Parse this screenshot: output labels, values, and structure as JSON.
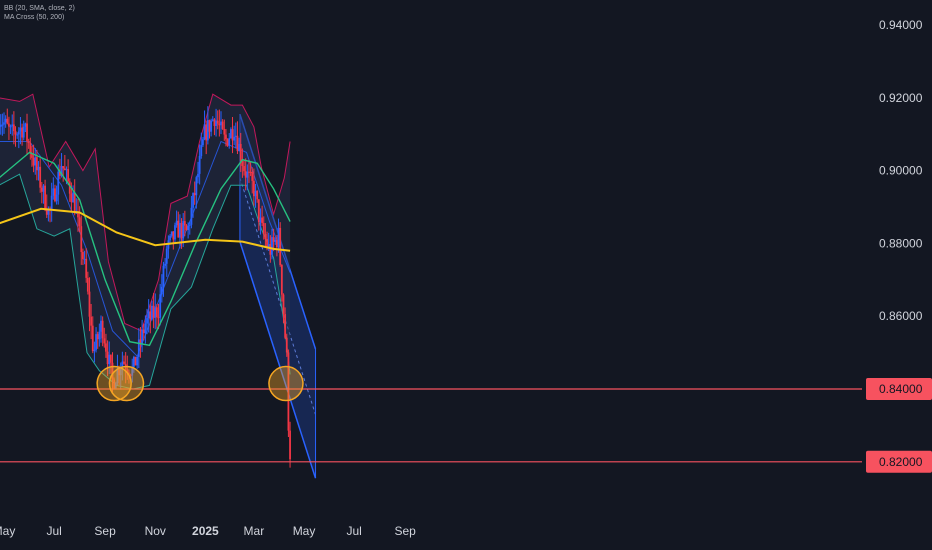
{
  "indicators": {
    "bb_label": "BB (20, SMA, close, 2)",
    "ma_label": "MA Cross (50, 200)"
  },
  "colors": {
    "background": "#131722",
    "candle_up": "#2962ff",
    "candle_down": "#f23645",
    "ma_200": "#f5c518",
    "ma_50": "#26c281",
    "bb_basis": "#2962ff",
    "bb_upper": "#c2185b",
    "bb_lower": "#26a69a",
    "level_line": "#f7525f",
    "channel": "#2962ff",
    "highlight_circle": "#f5a623"
  },
  "chart_data": {
    "type": "candlestick",
    "instrument_note": "",
    "x_axis_labels": [
      "May",
      "Jul",
      "Sep",
      "Nov",
      "2025",
      "Mar",
      "May",
      "Jul",
      "Sep"
    ],
    "y_axis_ticks": [
      "0.94000",
      "0.92000",
      "0.90000",
      "0.88000",
      "0.86000",
      "0.84000",
      "0.82000"
    ],
    "ylim": [
      0.8095,
      0.9525
    ],
    "horizontal_levels": [
      {
        "value": 0.84,
        "label": "0.84000"
      },
      {
        "value": 0.82,
        "label": "0.82000"
      }
    ],
    "price_path": [
      {
        "date": "2024-04-25",
        "price": 0.915
      },
      {
        "date": "2024-05-10",
        "price": 0.91
      },
      {
        "date": "2024-05-25",
        "price": 0.912
      },
      {
        "date": "2024-06-10",
        "price": 0.9
      },
      {
        "date": "2024-06-25",
        "price": 0.888
      },
      {
        "date": "2024-07-10",
        "price": 0.902
      },
      {
        "date": "2024-07-25",
        "price": 0.892
      },
      {
        "date": "2024-08-08",
        "price": 0.872
      },
      {
        "date": "2024-08-18",
        "price": 0.85
      },
      {
        "date": "2024-08-28",
        "price": 0.858
      },
      {
        "date": "2024-09-10",
        "price": 0.842
      },
      {
        "date": "2024-09-22",
        "price": 0.848
      },
      {
        "date": "2024-10-05",
        "price": 0.845
      },
      {
        "date": "2024-10-20",
        "price": 0.858
      },
      {
        "date": "2024-11-05",
        "price": 0.862
      },
      {
        "date": "2024-11-15",
        "price": 0.878
      },
      {
        "date": "2024-11-28",
        "price": 0.884
      },
      {
        "date": "2024-12-10",
        "price": 0.883
      },
      {
        "date": "2024-12-20",
        "price": 0.895
      },
      {
        "date": "2024-12-31",
        "price": 0.91
      },
      {
        "date": "2025-01-12",
        "price": 0.915
      },
      {
        "date": "2025-01-25",
        "price": 0.908
      },
      {
        "date": "2025-02-05",
        "price": 0.912
      },
      {
        "date": "2025-02-18",
        "price": 0.9
      },
      {
        "date": "2025-03-01",
        "price": 0.895
      },
      {
        "date": "2025-03-10",
        "price": 0.884
      },
      {
        "date": "2025-03-20",
        "price": 0.878
      },
      {
        "date": "2025-03-31",
        "price": 0.882
      },
      {
        "date": "2025-04-04",
        "price": 0.868
      },
      {
        "date": "2025-04-07",
        "price": 0.858
      },
      {
        "date": "2025-04-10",
        "price": 0.848
      },
      {
        "date": "2025-04-11",
        "price": 0.835
      },
      {
        "date": "2025-04-14",
        "price": 0.8225
      }
    ],
    "ma_200": [
      {
        "date": "2024-04-25",
        "price": 0.8855
      },
      {
        "date": "2024-06-15",
        "price": 0.8895
      },
      {
        "date": "2024-08-01",
        "price": 0.8885
      },
      {
        "date": "2024-09-15",
        "price": 0.883
      },
      {
        "date": "2024-11-01",
        "price": 0.8795
      },
      {
        "date": "2025-01-01",
        "price": 0.881
      },
      {
        "date": "2025-02-15",
        "price": 0.8805
      },
      {
        "date": "2025-03-25",
        "price": 0.8785
      },
      {
        "date": "2025-04-14",
        "price": 0.878
      }
    ],
    "ma_50": [
      {
        "date": "2024-04-25",
        "price": 0.898
      },
      {
        "date": "2024-06-01",
        "price": 0.905
      },
      {
        "date": "2024-07-01",
        "price": 0.902
      },
      {
        "date": "2024-08-01",
        "price": 0.892
      },
      {
        "date": "2024-09-01",
        "price": 0.87
      },
      {
        "date": "2024-10-01",
        "price": 0.853
      },
      {
        "date": "2024-10-25",
        "price": 0.852
      },
      {
        "date": "2024-11-20",
        "price": 0.864
      },
      {
        "date": "2024-12-20",
        "price": 0.88
      },
      {
        "date": "2025-01-20",
        "price": 0.895
      },
      {
        "date": "2025-02-15",
        "price": 0.903
      },
      {
        "date": "2025-03-05",
        "price": 0.902
      },
      {
        "date": "2025-03-25",
        "price": 0.895
      },
      {
        "date": "2025-04-14",
        "price": 0.886
      }
    ],
    "bb_upper": [
      {
        "date": "2024-04-25",
        "price": 0.92
      },
      {
        "date": "2024-05-20",
        "price": 0.919
      },
      {
        "date": "2024-06-05",
        "price": 0.921
      },
      {
        "date": "2024-06-25",
        "price": 0.901
      },
      {
        "date": "2024-07-15",
        "price": 0.908
      },
      {
        "date": "2024-08-05",
        "price": 0.9
      },
      {
        "date": "2024-08-20",
        "price": 0.906
      },
      {
        "date": "2024-09-05",
        "price": 0.875
      },
      {
        "date": "2024-09-25",
        "price": 0.858
      },
      {
        "date": "2024-10-15",
        "price": 0.856
      },
      {
        "date": "2024-11-05",
        "price": 0.87
      },
      {
        "date": "2024-11-20",
        "price": 0.891
      },
      {
        "date": "2024-12-10",
        "price": 0.893
      },
      {
        "date": "2024-12-25",
        "price": 0.908
      },
      {
        "date": "2025-01-10",
        "price": 0.921
      },
      {
        "date": "2025-02-01",
        "price": 0.918
      },
      {
        "date": "2025-02-15",
        "price": 0.918
      },
      {
        "date": "2025-03-01",
        "price": 0.912
      },
      {
        "date": "2025-03-10",
        "price": 0.901
      },
      {
        "date": "2025-03-25",
        "price": 0.888
      },
      {
        "date": "2025-04-07",
        "price": 0.898
      },
      {
        "date": "2025-04-14",
        "price": 0.908
      }
    ],
    "bb_lower": [
      {
        "date": "2024-04-25",
        "price": 0.896
      },
      {
        "date": "2024-05-20",
        "price": 0.899
      },
      {
        "date": "2024-06-10",
        "price": 0.884
      },
      {
        "date": "2024-07-01",
        "price": 0.882
      },
      {
        "date": "2024-07-20",
        "price": 0.884
      },
      {
        "date": "2024-08-10",
        "price": 0.85
      },
      {
        "date": "2024-08-25",
        "price": 0.845
      },
      {
        "date": "2024-09-15",
        "price": 0.841
      },
      {
        "date": "2024-10-05",
        "price": 0.84
      },
      {
        "date": "2024-10-25",
        "price": 0.841
      },
      {
        "date": "2024-11-20",
        "price": 0.862
      },
      {
        "date": "2024-12-15",
        "price": 0.868
      },
      {
        "date": "2025-01-10",
        "price": 0.884
      },
      {
        "date": "2025-02-01",
        "price": 0.896
      },
      {
        "date": "2025-02-20",
        "price": 0.896
      },
      {
        "date": "2025-03-10",
        "price": 0.884
      },
      {
        "date": "2025-03-25",
        "price": 0.876
      },
      {
        "date": "2025-04-07",
        "price": 0.858
      },
      {
        "date": "2025-04-14",
        "price": 0.844
      }
    ],
    "bb_basis": [
      {
        "date": "2024-04-25",
        "price": 0.908
      },
      {
        "date": "2024-06-01",
        "price": 0.908
      },
      {
        "date": "2024-07-10",
        "price": 0.896
      },
      {
        "date": "2024-08-10",
        "price": 0.878
      },
      {
        "date": "2024-09-10",
        "price": 0.856
      },
      {
        "date": "2024-10-10",
        "price": 0.849
      },
      {
        "date": "2024-11-15",
        "price": 0.87
      },
      {
        "date": "2024-12-20",
        "price": 0.89
      },
      {
        "date": "2025-01-20",
        "price": 0.908
      },
      {
        "date": "2025-02-20",
        "price": 0.905
      },
      {
        "date": "2025-03-20",
        "price": 0.886
      },
      {
        "date": "2025-04-14",
        "price": 0.872
      }
    ],
    "regression_channel": {
      "upper": [
        {
          "date": "2025-02-12",
          "price": 0.9155
        },
        {
          "date": "2025-05-15",
          "price": 0.851
        }
      ],
      "median": [
        {
          "date": "2025-02-12",
          "price": 0.898
        },
        {
          "date": "2025-05-15",
          "price": 0.833
        }
      ],
      "lower": [
        {
          "date": "2025-02-12",
          "price": 0.8805
        },
        {
          "date": "2025-05-15",
          "price": 0.8155
        }
      ]
    },
    "highlight_zones": [
      {
        "date": "2024-09-12",
        "price": 0.8415
      },
      {
        "date": "2024-09-27",
        "price": 0.8415
      },
      {
        "date": "2025-04-09",
        "price": 0.8415
      }
    ]
  }
}
